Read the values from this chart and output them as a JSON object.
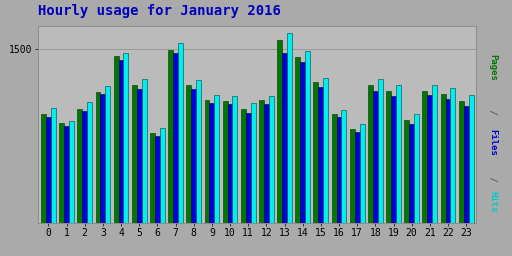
{
  "title": "Hourly usage for January 2016",
  "title_color": "#0000bb",
  "title_fontsize": 10,
  "hours": [
    0,
    1,
    2,
    3,
    4,
    5,
    6,
    7,
    8,
    9,
    10,
    11,
    12,
    13,
    14,
    15,
    16,
    17,
    18,
    19,
    20,
    21,
    22,
    23
  ],
  "pages": [
    940,
    860,
    980,
    1130,
    1440,
    1190,
    770,
    1490,
    1190,
    1060,
    1050,
    980,
    1060,
    1580,
    1430,
    1210,
    940,
    810,
    1190,
    1140,
    890,
    1140,
    1110,
    1050
  ],
  "files": [
    910,
    830,
    960,
    1110,
    1400,
    1150,
    750,
    1460,
    1150,
    1030,
    1020,
    950,
    1020,
    1460,
    1390,
    1170,
    910,
    780,
    1140,
    1090,
    850,
    1100,
    1070,
    1010
  ],
  "hits": [
    990,
    880,
    1040,
    1180,
    1460,
    1240,
    820,
    1550,
    1230,
    1100,
    1090,
    1030,
    1090,
    1640,
    1480,
    1250,
    970,
    850,
    1240,
    1190,
    940,
    1190,
    1160,
    1100
  ],
  "pages_color": "#007700",
  "files_color": "#0000dd",
  "hits_color": "#00eeee",
  "pages_edge": "#003300",
  "files_edge": "#000044",
  "hits_edge": "#004444",
  "ymax": 1700,
  "ytick": 1500,
  "bar_width": 0.27,
  "outer_bg": "#aaaaaa",
  "plot_bg": "#bbbbbb",
  "grid_color": "#999999",
  "font_family": "monospace",
  "tick_fontsize": 7,
  "ylabel_pages_color": "#007700",
  "ylabel_files_color": "#0000cc",
  "ylabel_hits_color": "#00cccc"
}
